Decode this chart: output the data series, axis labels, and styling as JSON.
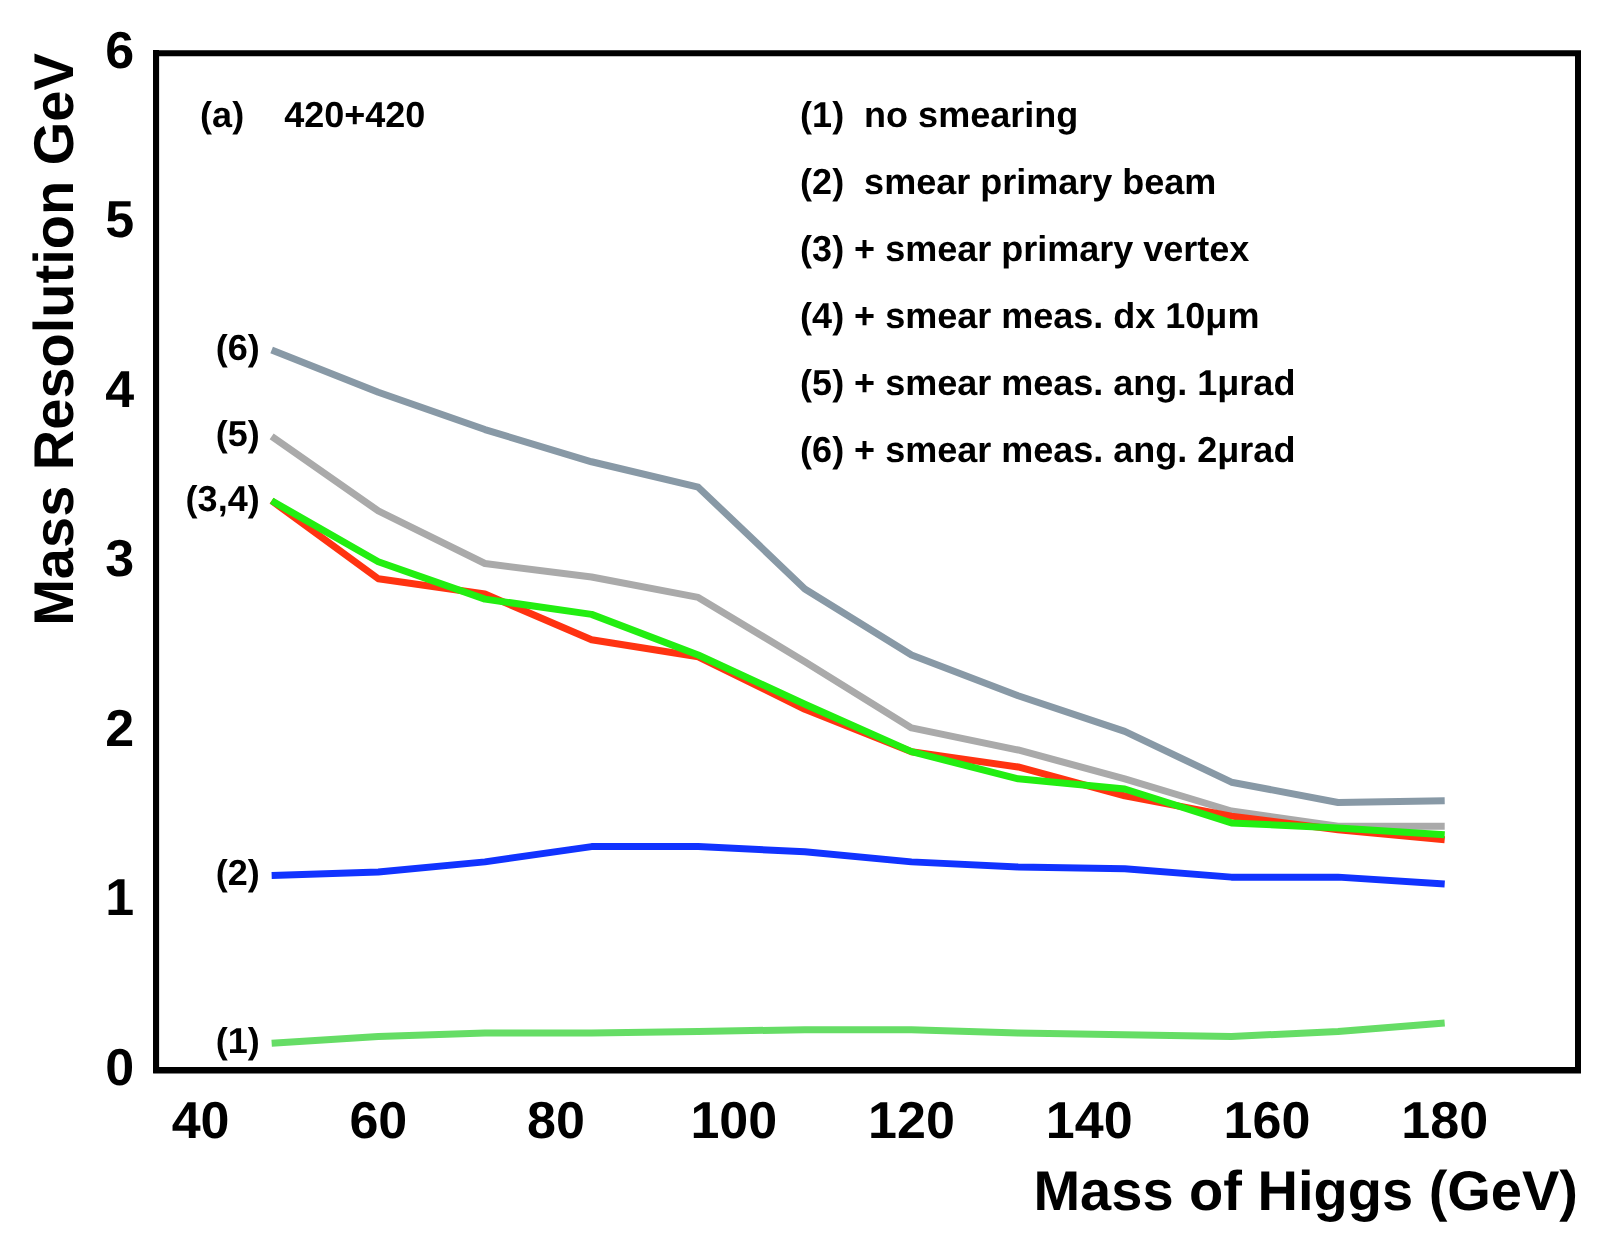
{
  "chart_data": {
    "type": "line",
    "xlabel": "Mass of Higgs (GeV)",
    "ylabel": "Mass Resolution GeV",
    "x": [
      48,
      60,
      72,
      84,
      96,
      108,
      120,
      132,
      144,
      156,
      168,
      180
    ],
    "xlim": [
      35,
      195
    ],
    "xticks": [
      40,
      60,
      80,
      100,
      120,
      140,
      160,
      180
    ],
    "ylim": [
      0,
      6
    ],
    "yticks": [
      0,
      1,
      2,
      3,
      4,
      5,
      6
    ],
    "grid": false,
    "marker": "none",
    "line_style": "solid",
    "series": [
      {
        "name": "(1)",
        "color": "#66dd66",
        "values": [
          0.16,
          0.2,
          0.22,
          0.22,
          0.23,
          0.24,
          0.24,
          0.22,
          0.21,
          0.2,
          0.23,
          0.28
        ]
      },
      {
        "name": "(2)",
        "color": "#1133ff",
        "values": [
          1.15,
          1.17,
          1.23,
          1.32,
          1.32,
          1.29,
          1.23,
          1.2,
          1.19,
          1.14,
          1.14,
          1.1
        ]
      },
      {
        "name": "(3,4)",
        "color": "#22ee11",
        "values": [
          3.36,
          3.0,
          2.78,
          2.69,
          2.45,
          2.16,
          1.88,
          1.72,
          1.66,
          1.46,
          1.43,
          1.39
        ]
      },
      {
        "color": "#ff3311",
        "values": [
          3.36,
          2.9,
          2.81,
          2.54,
          2.44,
          2.13,
          1.88,
          1.79,
          1.62,
          1.5,
          1.42,
          1.36
        ]
      },
      {
        "name": "(5)",
        "color": "#aaaaaa",
        "values": [
          3.74,
          3.3,
          2.99,
          2.91,
          2.79,
          2.41,
          2.02,
          1.89,
          1.72,
          1.53,
          1.44,
          1.44
        ]
      },
      {
        "name": "(6)",
        "color": "#8899a6",
        "values": [
          4.25,
          4.0,
          3.78,
          3.59,
          3.44,
          2.84,
          2.45,
          2.21,
          2.0,
          1.7,
          1.58,
          1.59
        ]
      }
    ],
    "annotations": [
      "(a)    420+420",
      "(1)  no smearing",
      "(2)  smear primary beam",
      "(3) + smear primary vertex",
      "(4) + smear meas. dx 10μm",
      "(5) + smear meas. ang. 1μrad",
      "(6) + smear meas. ang. 2μrad"
    ]
  }
}
